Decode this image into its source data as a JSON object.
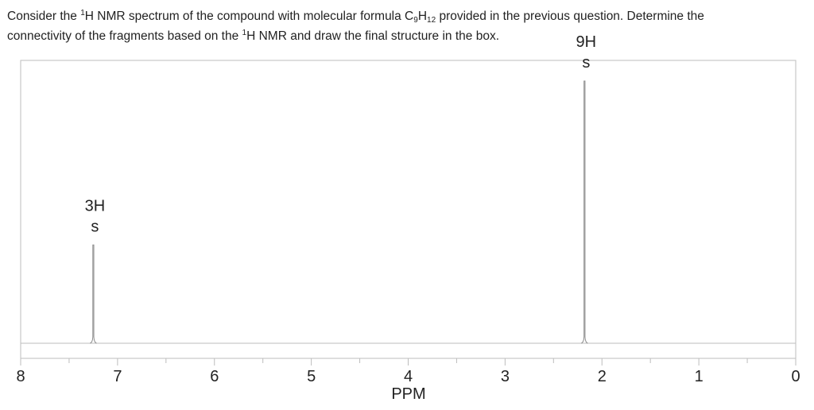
{
  "question": {
    "line1_a": "Consider the ",
    "sup1": "1",
    "line1_b": "H NMR spectrum of the compound with molecular formula C",
    "sub_c": "9",
    "line1_c": "H",
    "sub_h": "12",
    "line1_d": " provided in the previous question. Determine the",
    "line2_a": "connectivity of the fragments based on the ",
    "sup2": "1",
    "line2_b": "H NMR and draw the final structure in the box."
  },
  "chart_data": {
    "type": "nmr_spectrum",
    "xlabel": "PPM",
    "xlim": [
      8,
      0
    ],
    "x_reversed": true,
    "tick_labels": [
      "8",
      "7",
      "6",
      "5",
      "4",
      "3",
      "2",
      "1",
      "0"
    ],
    "peaks": [
      {
        "shift": 7.25,
        "relative_height": 0.375,
        "integration": "3H",
        "multiplicity": "s"
      },
      {
        "shift": 2.18,
        "relative_height": 1.0,
        "integration": "9H",
        "multiplicity": "s"
      }
    ]
  },
  "colors": {
    "frame": "#bdbdbd",
    "peak": "#8a8a8a",
    "text": "#222222"
  }
}
